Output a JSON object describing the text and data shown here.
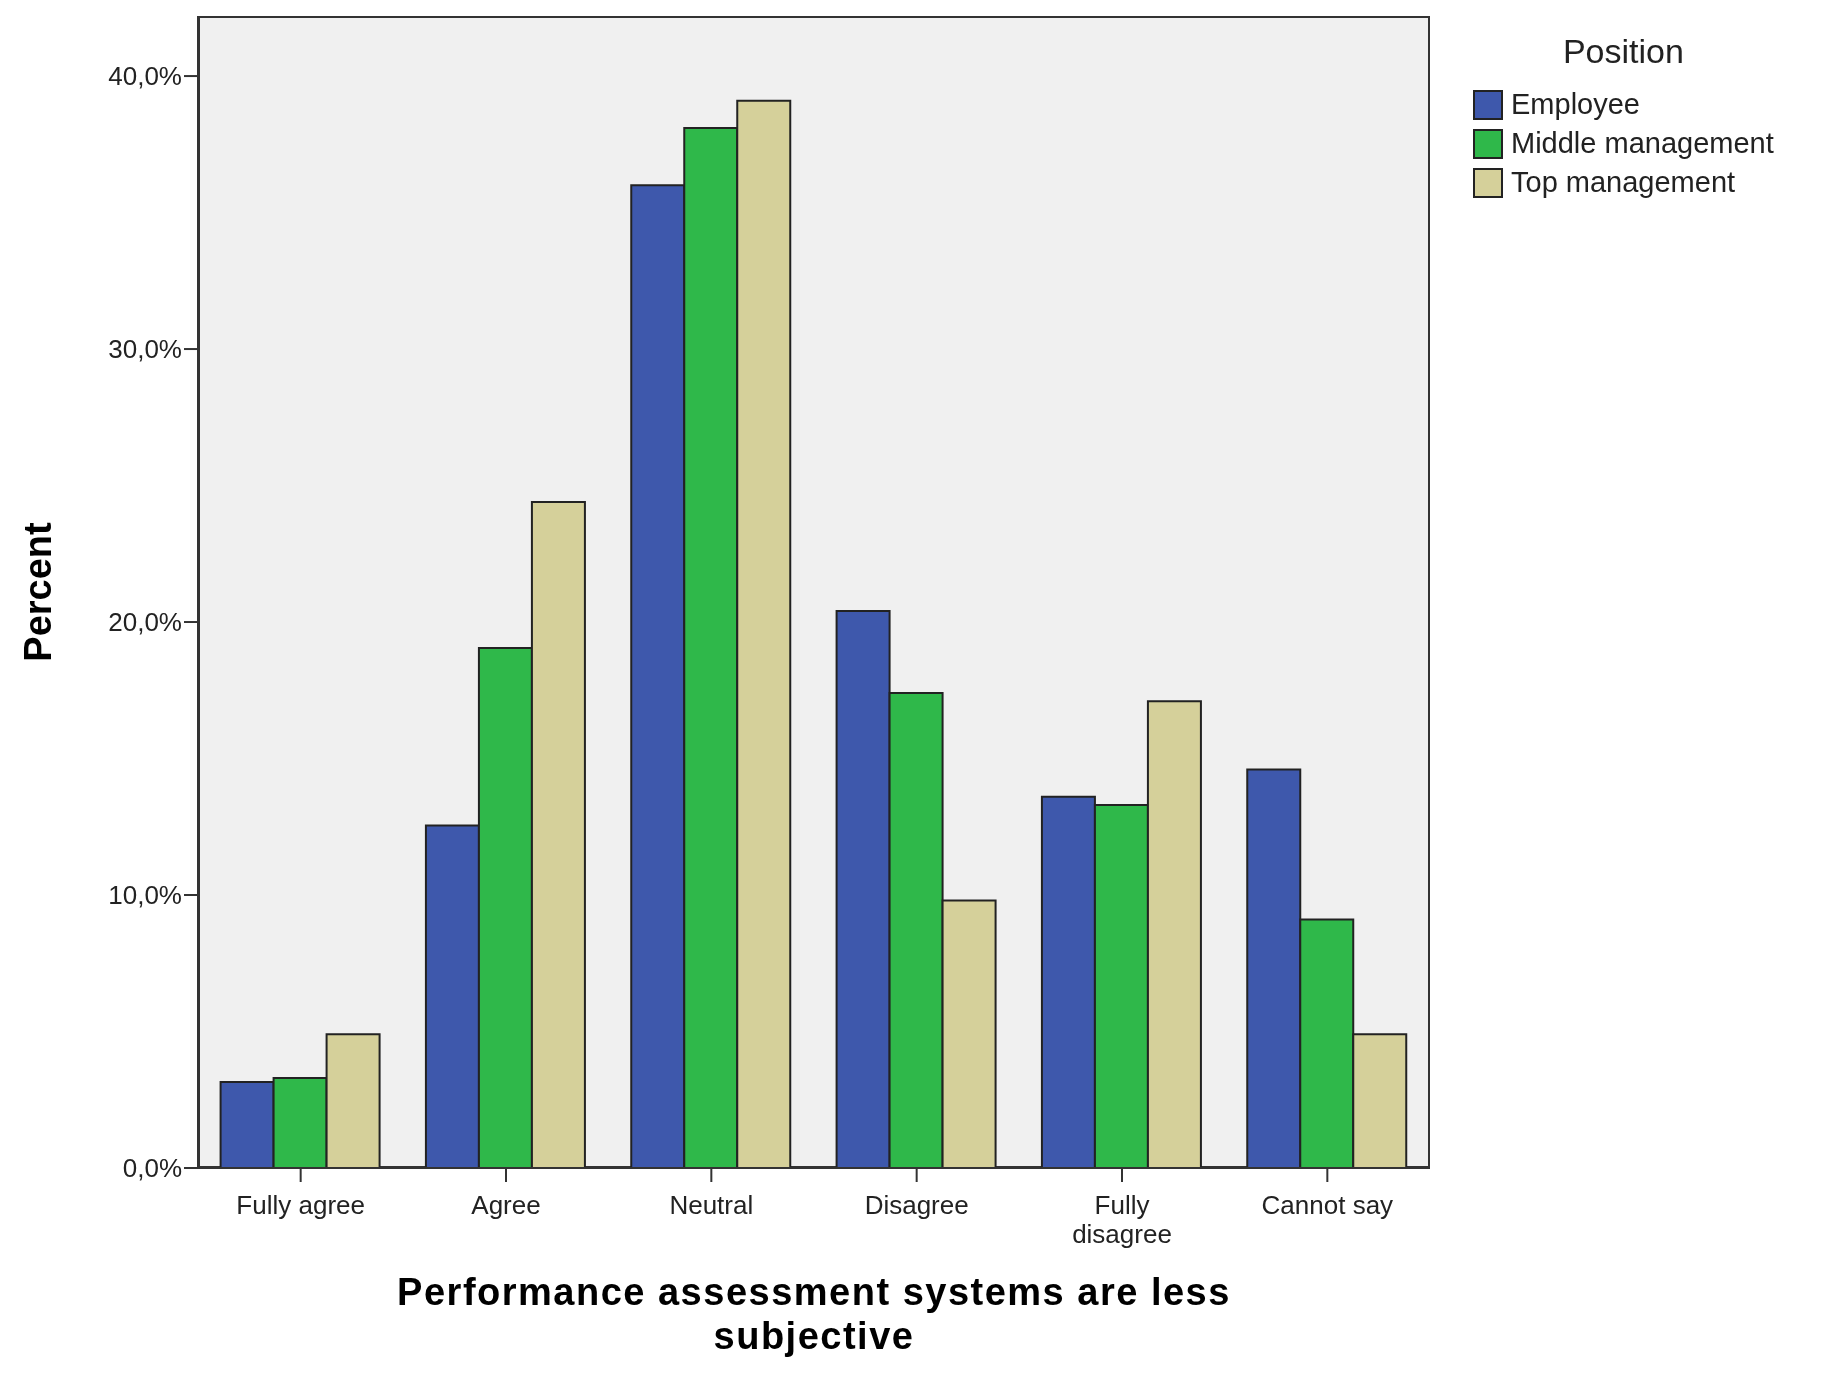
{
  "chart_data": {
    "type": "bar",
    "xlabel": "Performance assessment systems are less subjective",
    "ylabel": "Percent",
    "legend_title": "Position",
    "legend": "top right",
    "categories": [
      "Fully agree",
      "Agree",
      "Neutral",
      "Disagree",
      "Fully disagree",
      "Cannot say"
    ],
    "series": [
      {
        "name": "Employee",
        "color": "#3e58ac",
        "values": [
          3.15,
          12.55,
          36.0,
          20.4,
          13.6,
          14.6
        ]
      },
      {
        "name": "Middle management",
        "color": "#2fb84a",
        "values": [
          3.3,
          19.05,
          38.1,
          17.4,
          13.3,
          9.1
        ]
      },
      {
        "name": "Top management",
        "color": "#d5d09a",
        "values": [
          4.9,
          24.4,
          39.1,
          9.8,
          17.1,
          4.9
        ]
      }
    ],
    "ylim": [
      0,
      42.2
    ],
    "yticks": [
      {
        "value": 0,
        "label": "0,0%"
      },
      {
        "value": 10,
        "label": "10,0%"
      },
      {
        "value": 20,
        "label": "20,0%"
      },
      {
        "value": 30,
        "label": "30,0%"
      },
      {
        "value": 40,
        "label": "40,0%"
      }
    ]
  }
}
